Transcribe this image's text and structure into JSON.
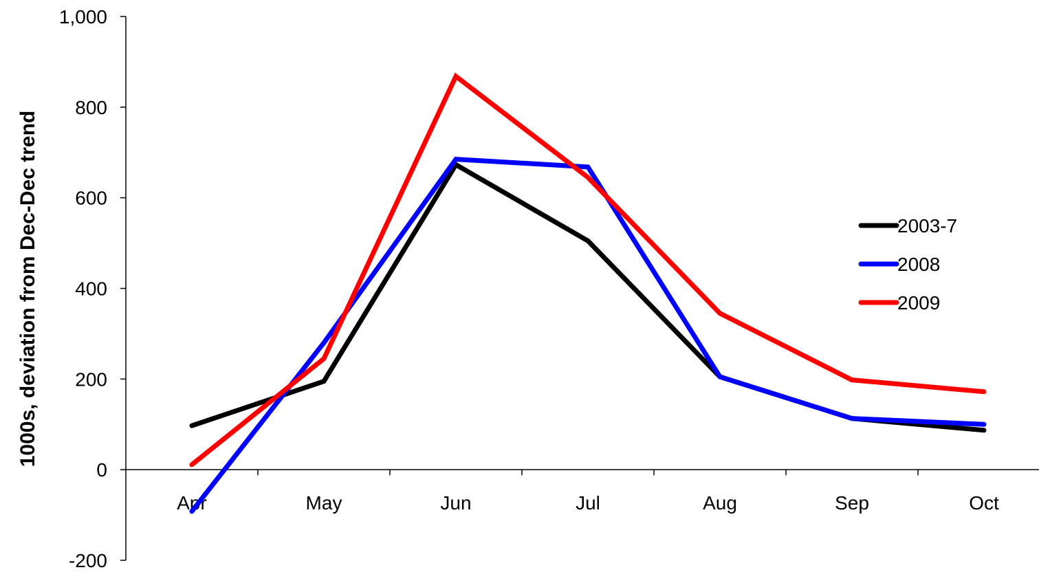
{
  "chart_data": {
    "type": "line",
    "title": "",
    "xlabel": "",
    "ylabel": "1000s, deviation from Dec-Dec trend",
    "categories": [
      "Apr",
      "May",
      "Jun",
      "Jul",
      "Aug",
      "Sep",
      "Oct"
    ],
    "ylim": [
      -200,
      1000
    ],
    "yticks": [
      -200,
      0,
      200,
      400,
      600,
      800,
      1000
    ],
    "ytick_labels": [
      "-200",
      "0",
      "200",
      "400",
      "600",
      "800",
      "1,000"
    ],
    "grid": false,
    "legend_position": "right",
    "series": [
      {
        "name": "2003-7",
        "color": "#000000",
        "values": [
          97,
          195,
          673,
          505,
          205,
          113,
          87
        ]
      },
      {
        "name": "2008",
        "color": "#0000ff",
        "values": [
          -92,
          280,
          685,
          668,
          205,
          113,
          100
        ]
      },
      {
        "name": "2009",
        "color": "#ff0000",
        "values": [
          11,
          245,
          868,
          645,
          345,
          198,
          172
        ]
      }
    ]
  }
}
